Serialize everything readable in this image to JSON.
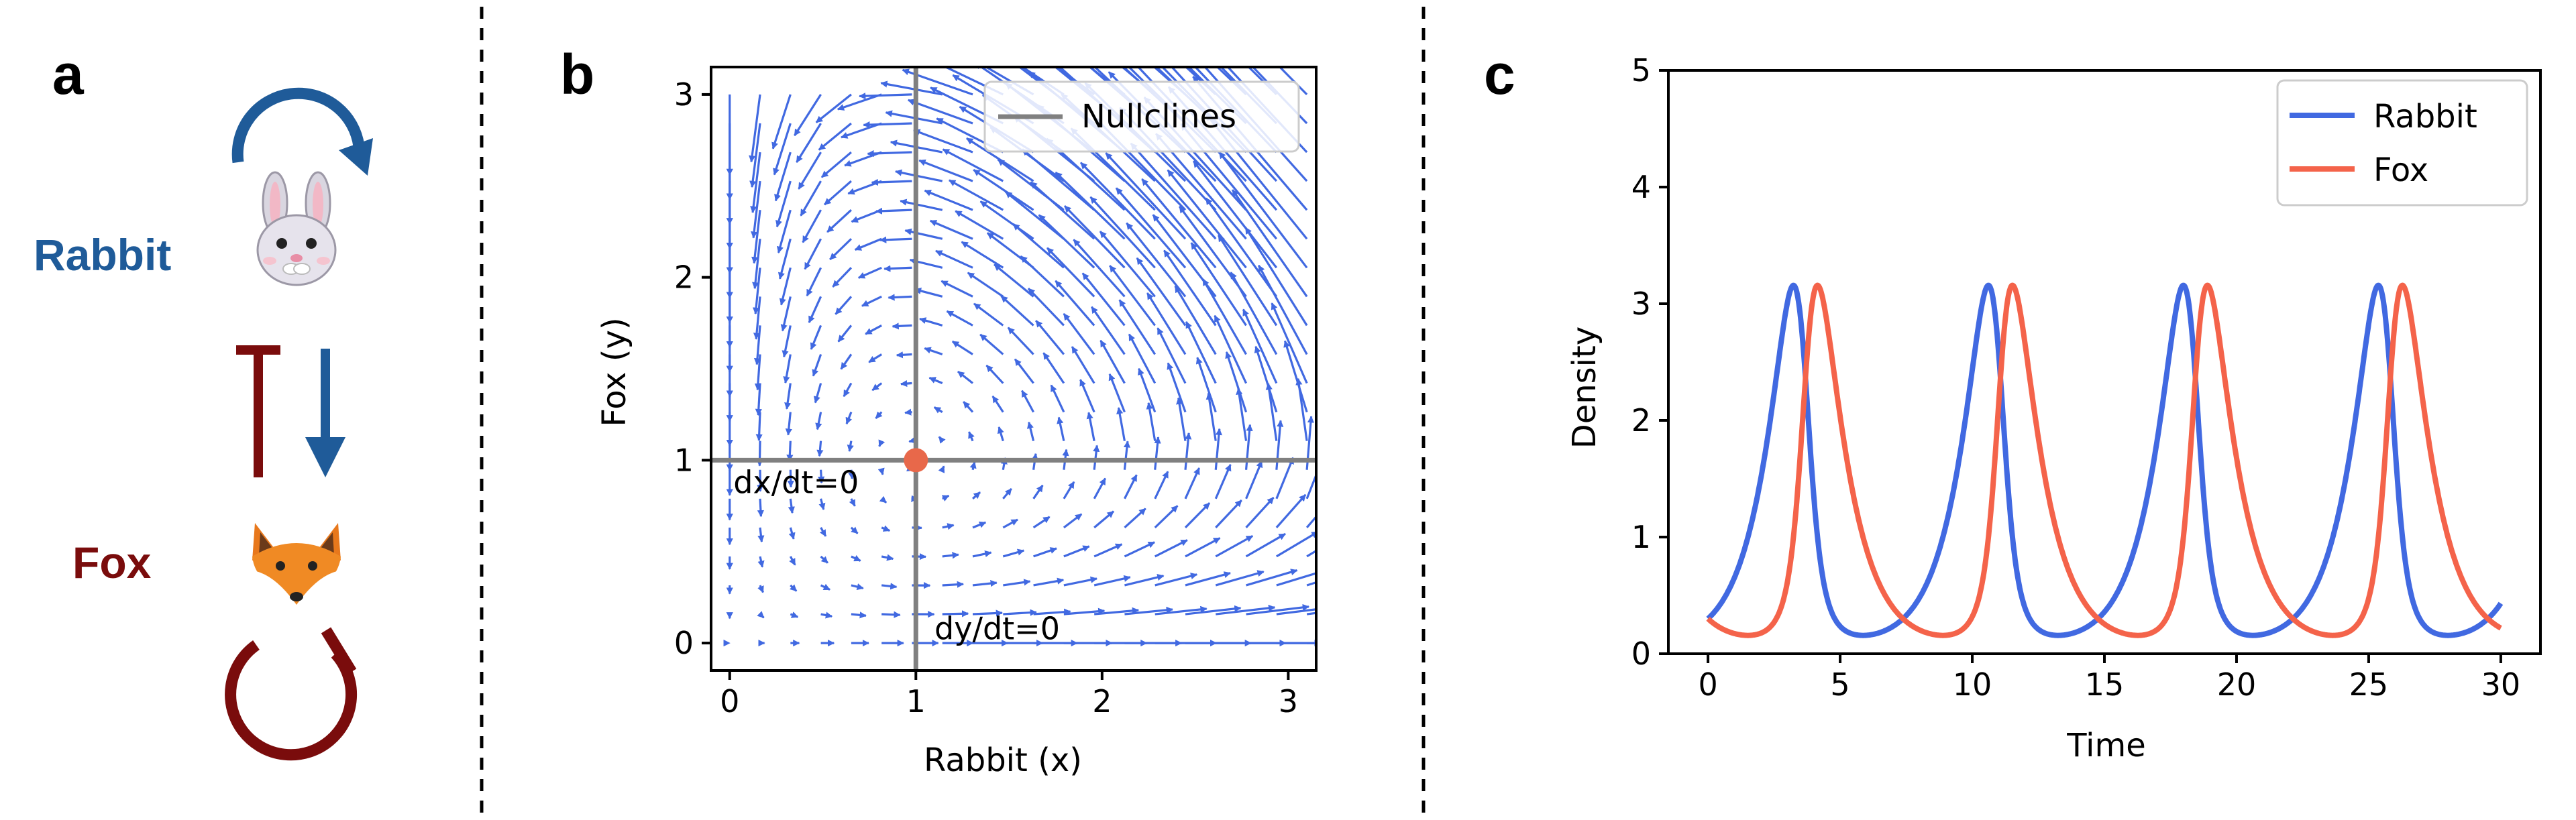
{
  "panel_a": {
    "letter": "a",
    "rabbit_label": "Rabbit",
    "fox_label": "Fox",
    "rabbit_color": "#1f5b99",
    "fox_color": "#7a0c0c",
    "rabbit_icon": "rabbit-face-icon",
    "fox_icon": "fox-face-icon"
  },
  "chart_data": [
    {
      "panel": "b",
      "type": "quiver",
      "xlabel": "Rabbit (x)",
      "ylabel": "Fox (y)",
      "xlim": [
        -0.1,
        3.15
      ],
      "ylim": [
        -0.15,
        3.15
      ],
      "xticks": [
        0,
        1,
        2,
        3
      ],
      "yticks": [
        0,
        1,
        2,
        3
      ],
      "vector_field": {
        "dx": "x*(1-y)",
        "dy": "y*(x-1)",
        "x_range": [
          0,
          3.1
        ],
        "y_range": [
          0,
          3.0
        ],
        "grid": 20
      },
      "nullclines": {
        "vertical_x": 1,
        "horizontal_y": 1
      },
      "fixed_point": [
        1,
        1
      ],
      "legend": {
        "entries": [
          "Nullclines"
        ],
        "position": "top-right"
      },
      "annotations": [
        {
          "text": "dx/dt=0",
          "x": 0.02,
          "y": 0.82
        },
        {
          "text": "dy/dt=0",
          "x": 1.1,
          "y": 0.02
        }
      ],
      "colors": {
        "arrows": "#4169e1",
        "nullcline": "#808080",
        "fixed_point": "#e8684a"
      }
    },
    {
      "panel": "c",
      "type": "line",
      "xlabel": "Time",
      "ylabel": "Density",
      "xlim": [
        -1.5,
        31.5
      ],
      "ylim": [
        0,
        5
      ],
      "xticks": [
        0,
        5,
        10,
        15,
        20,
        25,
        30
      ],
      "yticks": [
        0,
        1,
        2,
        3,
        4,
        5
      ],
      "legend": {
        "position": "top-right"
      },
      "series": [
        {
          "name": "Rabbit",
          "color": "#4169e1"
        },
        {
          "name": "Fox",
          "color": "#f4634a"
        }
      ],
      "model": {
        "equations": "dx/dt = x(1-y), dy/dt = y(x-1)",
        "x0": 0.3,
        "y0": 0.3,
        "t_range": [
          0,
          30
        ]
      }
    }
  ]
}
